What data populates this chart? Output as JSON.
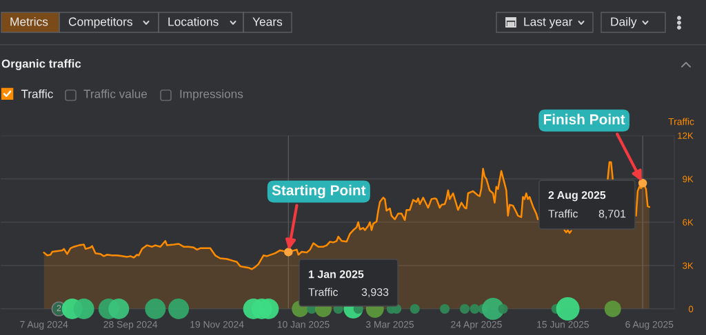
{
  "chart_data": {
    "type": "area",
    "title": "Organic traffic",
    "ylabel": "Traffic",
    "xlim": [
      "2024-07-12",
      "2025-08-21"
    ],
    "xticks": [
      {
        "value": "2024-08-07",
        "label": "7 Aug 2024"
      },
      {
        "value": "2024-09-28",
        "label": "28 Sep 2024"
      },
      {
        "value": "2024-11-19",
        "label": "19 Nov 2024"
      },
      {
        "value": "2025-01-10",
        "label": "10 Jan 2025"
      },
      {
        "value": "2025-03-03",
        "label": "3 Mar 2025"
      },
      {
        "value": "2025-04-24",
        "label": "24 Apr 2025"
      },
      {
        "value": "2025-06-15",
        "label": "15 Jun 2025"
      },
      {
        "value": "2025-08-06",
        "label": "6 Aug 2025"
      }
    ],
    "ylim": [
      0,
      12000
    ],
    "yticks": [
      0,
      {
        "value": 3000,
        "label": "3K"
      },
      {
        "value": 6000,
        "label": "6K"
      },
      {
        "value": 9000,
        "label": "9K"
      },
      {
        "value": 12000,
        "label": "12K"
      }
    ],
    "grid": "y",
    "legend": "top left",
    "series": [
      {
        "name": "Traffic",
        "color": "#ff8c00",
        "x": [
          "2024-08-07",
          "2024-08-09",
          "2024-08-11",
          "2024-08-12",
          "2024-08-15",
          "2024-08-18",
          "2024-08-19",
          "2024-08-21",
          "2024-08-23",
          "2024-08-25",
          "2024-08-28",
          "2024-08-31",
          "2024-09-01",
          "2024-09-04",
          "2024-09-05",
          "2024-09-07",
          "2024-09-10",
          "2024-09-12",
          "2024-09-14",
          "2024-09-17",
          "2024-09-20",
          "2024-09-23",
          "2024-09-26",
          "2024-09-28",
          "2024-09-30",
          "2024-10-02",
          "2024-10-03",
          "2024-10-05",
          "2024-10-08",
          "2024-10-11",
          "2024-10-13",
          "2024-10-16",
          "2024-10-19",
          "2024-10-20",
          "2024-10-24",
          "2024-10-27",
          "2024-10-30",
          "2024-11-02",
          "2024-11-05",
          "2024-11-07",
          "2024-11-09",
          "2024-11-12",
          "2024-11-15",
          "2024-11-18",
          "2024-11-21",
          "2024-11-25",
          "2024-11-28",
          "2024-12-01",
          "2024-12-03",
          "2024-12-05",
          "2024-12-08",
          "2024-12-10",
          "2024-12-12",
          "2024-12-14",
          "2024-12-17",
          "2024-12-19",
          "2024-12-24",
          "2024-12-27",
          "2024-12-29",
          "2025-01-01",
          "2025-01-06",
          "2025-01-07",
          "2025-01-09",
          "2025-01-12",
          "2025-01-14",
          "2025-01-16",
          "2025-01-19",
          "2025-01-22",
          "2025-01-24",
          "2025-01-26",
          "2025-01-28",
          "2025-01-30",
          "2025-01-31",
          "2025-02-02",
          "2025-02-05",
          "2025-02-07",
          "2025-02-09",
          "2025-02-11",
          "2025-02-12",
          "2025-02-13",
          "2025-02-15",
          "2025-02-16",
          "2025-02-18",
          "2025-02-19",
          "2025-02-20",
          "2025-02-21",
          "2025-02-23",
          "2025-02-24",
          "2025-02-25",
          "2025-02-27",
          "2025-02-28",
          "2025-03-01",
          "2025-03-03",
          "2025-03-04",
          "2025-03-06",
          "2025-03-08",
          "2025-03-10",
          "2025-03-12",
          "2025-03-13",
          "2025-03-15",
          "2025-03-17",
          "2025-03-19",
          "2025-03-20",
          "2025-03-21",
          "2025-03-23",
          "2025-03-26",
          "2025-03-28",
          "2025-03-30",
          "2025-03-31",
          "2025-04-02",
          "2025-04-03",
          "2025-04-05",
          "2025-04-06",
          "2025-04-07",
          "2025-04-08",
          "2025-04-09",
          "2025-04-10",
          "2025-04-13",
          "2025-04-15",
          "2025-04-17",
          "2025-04-18",
          "2025-04-19",
          "2025-04-22",
          "2025-04-23",
          "2025-04-25",
          "2025-04-26",
          "2025-04-27",
          "2025-04-28",
          "2025-04-29",
          "2025-04-30",
          "2025-05-02",
          "2025-05-04",
          "2025-05-05",
          "2025-05-06",
          "2025-05-07",
          "2025-05-09",
          "2025-05-10",
          "2025-05-12",
          "2025-05-13",
          "2025-05-14",
          "2025-05-16",
          "2025-05-18",
          "2025-05-19",
          "2025-05-21",
          "2025-05-22",
          "2025-05-23",
          "2025-05-24",
          "2025-05-25",
          "2025-05-26",
          "2025-05-28",
          "2025-05-30",
          "2025-05-31",
          "2025-06-06",
          "2025-06-16",
          "2025-06-17",
          "2025-06-18",
          "2025-06-19",
          "2025-06-20",
          "2025-07-01",
          "2025-07-12",
          "2025-07-13",
          "2025-07-14",
          "2025-07-15",
          "2025-07-23",
          "2025-07-29",
          "2025-07-30",
          "2025-07-31",
          "2025-08-01",
          "2025-08-02",
          "2025-08-03",
          "2025-08-04",
          "2025-08-05",
          "2025-08-06"
        ],
        "values": [
          3900,
          3700,
          3750,
          3950,
          4000,
          4050,
          4150,
          3800,
          4200,
          4300,
          4400,
          4450,
          4150,
          4250,
          4350,
          3850,
          3800,
          3650,
          3750,
          3700,
          3700,
          3650,
          3600,
          3650,
          3550,
          3750,
          3700,
          4150,
          4400,
          4300,
          4400,
          4300,
          4700,
          4400,
          4450,
          4500,
          4300,
          4300,
          4250,
          4100,
          4200,
          4200,
          4200,
          3700,
          3500,
          3450,
          3350,
          3250,
          2950,
          2900,
          2850,
          2750,
          2900,
          3100,
          3700,
          3650,
          3850,
          4050,
          4000,
          3933,
          4100,
          3750,
          3950,
          3900,
          4100,
          4550,
          4300,
          4300,
          4400,
          4650,
          4600,
          4700,
          5000,
          4700,
          4650,
          5200,
          5450,
          5650,
          6000,
          5500,
          5600,
          5450,
          5750,
          6000,
          5450,
          5900,
          6050,
          6800,
          7400,
          7700,
          7600,
          6800,
          6950,
          6450,
          6200,
          6600,
          6600,
          6150,
          6850,
          6850,
          7550,
          7400,
          7650,
          7250,
          7700,
          7000,
          7600,
          7650,
          7600,
          7000,
          7200,
          7250,
          7600,
          8200,
          7600,
          7800,
          8000,
          6850,
          7350,
          7000,
          6950,
          8000,
          8150,
          8050,
          7850,
          7800,
          8350,
          9700,
          9150,
          9000,
          8200,
          8000,
          7350,
          8450,
          8300,
          9550,
          9100,
          8200,
          6450,
          7200,
          7150,
          6700,
          6450,
          6350,
          7750,
          7600,
          8000,
          7600,
          7750,
          7100,
          6600,
          6200,
          null,
          5450,
          5300,
          5450,
          5250,
          5400,
          null,
          9000,
          10150,
          10150,
          9000,
          null,
          6450,
          8150,
          8450,
          8350,
          8701,
          8550,
          8300,
          7100,
          7050
        ]
      },
      {
        "type": "bubble",
        "x": [
          "2024-08-24",
          "2024-08-31",
          "2024-09-15",
          "2024-09-21",
          "2024-10-13",
          "2024-10-27",
          "2024-12-11",
          "2024-12-16",
          "2024-12-20",
          "2025-01-08",
          "2025-01-15",
          "2025-01-22",
          "2025-01-31",
          "2025-02-09",
          "2025-02-12",
          "2025-02-22",
          "2025-03-04",
          "2025-03-07",
          "2025-03-18",
          "2025-04-05",
          "2025-04-17",
          "2025-04-23",
          "2025-04-28",
          "2025-05-04",
          "2025-05-10",
          "2025-06-11",
          "2025-06-18",
          "2025-07-15"
        ],
        "values": [
          0,
          0,
          0,
          0,
          0,
          0,
          0,
          0,
          0,
          0,
          0,
          0,
          0,
          0,
          0,
          0,
          0,
          0,
          0,
          0,
          0,
          0,
          0,
          0,
          0,
          0,
          0,
          0
        ],
        "sizes": [
          0.78,
          0.78,
          0.78,
          0.78,
          0.78,
          0.78,
          0.78,
          0.78,
          0.78,
          0.5,
          0.17,
          0.5,
          0.17,
          0.68,
          0.17,
          0.58,
          0.17,
          0.17,
          0.17,
          0.17,
          0.17,
          0.17,
          0.17,
          0.89,
          0.17,
          0.17,
          1,
          0.5
        ],
        "colors": [
          "#3ddc84",
          "#36c077",
          "#33a86a",
          "#3cc47c",
          "#33a86a",
          "#33a86a",
          "#3ddc84",
          "#3ddc84",
          "#3ddc84",
          "#5d9a3c",
          "#2f8a57",
          "#5d9a3c",
          "#2f8a57",
          "#3ddc84",
          "#2f8a57",
          "#5d9a3c",
          "#2f8a57",
          "#2f8a57",
          "#2f8a57",
          "#2f8a57",
          "#2f8a57",
          "#2f8a57",
          "#2f8a57",
          "#36b473",
          "#2f8a57",
          "#2f8a57",
          "#3ddc84",
          "#5d9a3c"
        ]
      }
    ],
    "ref_lines": [
      {
        "axis": "x",
        "value": "2025-01-01",
        "color": "#55565a"
      },
      {
        "axis": "x",
        "value": "2025-08-02",
        "color": "#55565a"
      }
    ],
    "annotations": [
      "Metrics",
      "Competitors",
      "Locations",
      "Years",
      "Last year",
      "Daily",
      "Traffic value",
      "Impressions",
      {
        "text": "Starting Point",
        "x": "2025-01-01",
        "y": 3933
      },
      {
        "text": "Finish Point",
        "x": "2025-08-02",
        "y": 8701
      },
      "1 Jan 2025",
      "Traffic",
      "3,933",
      "2 Aug 2025",
      "Traffic",
      "8,701",
      {
        "text": "2",
        "x": "2024-08-16",
        "y": 0
      }
    ]
  }
}
